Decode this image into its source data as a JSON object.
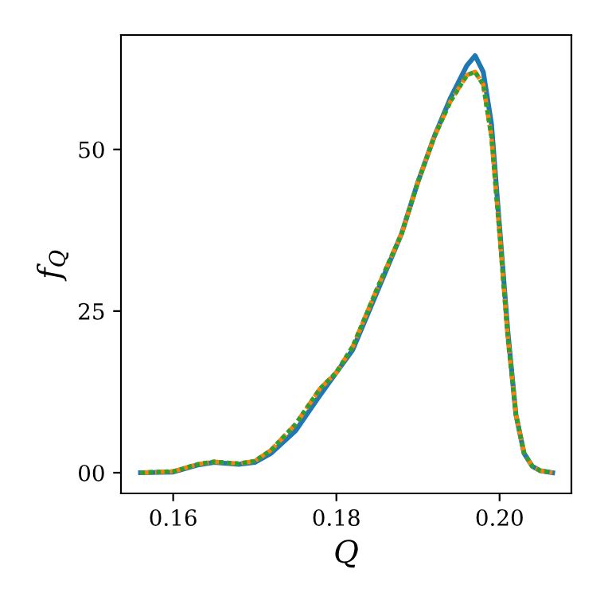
{
  "chart_data": {
    "type": "line",
    "xlabel": "Q",
    "ylabel": "f$_{Q}$",
    "xlim": [
      0.1536,
      0.2088
    ],
    "xticks": [
      0.16,
      0.18,
      {
        "value": 0.2,
        "label": "0.20"
      }
    ],
    "ylim": [
      -3.2,
      67.7
    ],
    "yticks": [
      {
        "value": 0,
        "label": "00"
      },
      25,
      50
    ],
    "grid": false,
    "marker": "none",
    "series": [
      {
        "color": "#1f77b4",
        "line_style": "solid",
        "x": [
          0.156,
          0.16,
          0.163,
          0.165,
          0.168,
          0.17,
          0.172,
          0.175,
          0.178,
          0.18,
          0.182,
          0.185,
          0.188,
          0.19,
          0.192,
          0.194,
          0.196,
          0.197,
          0.198,
          0.199,
          0.2,
          0.201,
          0.202,
          0.203,
          0.204,
          0.205,
          0.2065
        ],
        "values": [
          0,
          0.1,
          1.2,
          1.6,
          1.3,
          1.6,
          3,
          6.5,
          12,
          15.5,
          19,
          28,
          37,
          45,
          52,
          58,
          63,
          64.5,
          62,
          54,
          38,
          22,
          9,
          3,
          1,
          0.3,
          0
        ]
      },
      {
        "color": "#ff7f0e",
        "line_style": "dashed",
        "x": [
          0.156,
          0.16,
          0.163,
          0.165,
          0.168,
          0.17,
          0.172,
          0.175,
          0.178,
          0.18,
          0.182,
          0.185,
          0.188,
          0.19,
          0.192,
          0.194,
          0.196,
          0.197,
          0.198,
          0.199,
          0.2,
          0.201,
          0.202,
          0.203,
          0.204,
          0.205,
          0.2065
        ],
        "values": [
          0,
          0.2,
          1.3,
          1.7,
          1.4,
          1.8,
          3.5,
          7.5,
          13,
          15.5,
          19.5,
          28.5,
          37,
          45,
          52,
          57.5,
          61.5,
          62,
          60,
          52,
          37,
          21,
          9,
          3,
          1,
          0.3,
          0
        ]
      },
      {
        "color": "#2ca02c",
        "line_style": "dotted",
        "x": [
          0.156,
          0.16,
          0.163,
          0.165,
          0.168,
          0.17,
          0.172,
          0.175,
          0.178,
          0.18,
          0.182,
          0.185,
          0.188,
          0.19,
          0.192,
          0.194,
          0.196,
          0.197,
          0.198,
          0.199,
          0.2,
          0.201,
          0.202,
          0.203,
          0.204,
          0.205,
          0.2065
        ],
        "values": [
          0,
          0.2,
          1.3,
          1.7,
          1.4,
          1.8,
          3.5,
          7.5,
          13,
          15.5,
          19.5,
          28.5,
          37,
          45,
          52,
          57.5,
          61.5,
          62,
          60,
          52,
          37,
          21,
          9,
          3,
          1,
          0.3,
          0
        ]
      }
    ]
  }
}
